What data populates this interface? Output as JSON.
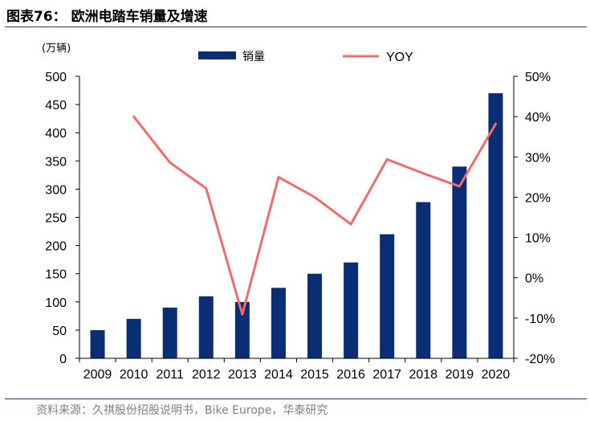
{
  "title": "图表76： 欧洲电踏车销量及增速",
  "source": "资料来源：久祺股份招股说明书，Bike Europe，华泰研究",
  "chart_data": {
    "type": "bar+line",
    "title": "欧洲电踏车销量及增速",
    "unit_label": "(万辆)",
    "categories": [
      "2009",
      "2010",
      "2011",
      "2012",
      "2013",
      "2014",
      "2015",
      "2016",
      "2017",
      "2018",
      "2019",
      "2020"
    ],
    "series": [
      {
        "name": "销量",
        "type": "bar",
        "axis": "left",
        "color": "#0a2e73",
        "values": [
          50,
          70,
          90,
          110,
          100,
          125,
          150,
          170,
          220,
          277,
          340,
          470
        ]
      },
      {
        "name": "YOY",
        "type": "line",
        "axis": "right",
        "color": "#f26b6b",
        "values": [
          null,
          40.0,
          28.6,
          22.2,
          -9.1,
          25.0,
          20.0,
          13.3,
          29.4,
          25.9,
          22.7,
          38.2
        ]
      }
    ],
    "left_axis": {
      "min": 0,
      "max": 500,
      "step": 50,
      "tick_labels": [
        "0",
        "50",
        "100",
        "150",
        "200",
        "250",
        "300",
        "350",
        "400",
        "450",
        "500"
      ]
    },
    "right_axis": {
      "min": -20,
      "max": 50,
      "step": 10,
      "tick_labels": [
        "-20%",
        "-10%",
        "0%",
        "10%",
        "20%",
        "30%",
        "40%",
        "50%"
      ]
    },
    "legend": [
      "销量",
      "YOY"
    ]
  }
}
